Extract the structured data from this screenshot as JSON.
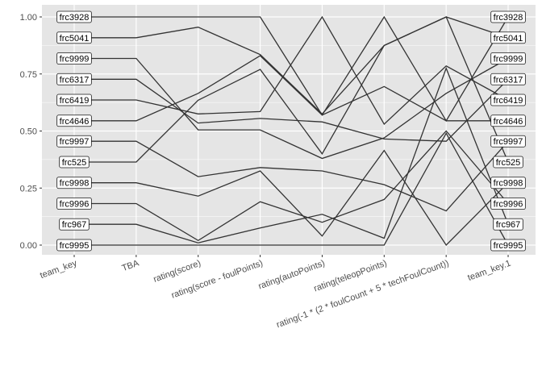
{
  "chart_data": {
    "type": "line",
    "subtype": "parallel-coordinates",
    "title": "",
    "xlabel": "",
    "ylabel": "",
    "ylim": [
      -0.05,
      1.05
    ],
    "y_ticks": [
      "0.00",
      "0.25",
      "0.50",
      "0.75",
      "1.00"
    ],
    "y_tick_values": [
      0,
      0.25,
      0.5,
      0.75,
      1.0
    ],
    "grid": true,
    "legend": "none",
    "colors": {
      "panel": "#e5e5e5",
      "grid": "#ffffff",
      "line": "#333333"
    },
    "categories": [
      "team_key",
      "TBA",
      "rating(score)",
      "rating(score - foulPoints)",
      "rating(autoPoints)",
      "rating(teleopPoints)",
      "rating(-1 * (2 * foulCount + 5 * techFoulCount))",
      "team_key.1"
    ],
    "series": [
      {
        "name": "frc3928",
        "values": [
          1.0,
          1.0,
          1.0,
          1.0,
          0.57,
          1.0,
          0.545,
          1.0
        ]
      },
      {
        "name": "frc5041",
        "values": [
          0.909,
          0.909,
          0.955,
          0.835,
          0.575,
          0.875,
          1.0,
          0.909
        ]
      },
      {
        "name": "frc9999",
        "values": [
          0.818,
          0.818,
          0.505,
          0.505,
          0.38,
          0.47,
          0.665,
          0.818
        ]
      },
      {
        "name": "frc6317",
        "values": [
          0.727,
          0.727,
          0.535,
          0.555,
          0.54,
          0.465,
          0.455,
          0.727
        ]
      },
      {
        "name": "frc6419",
        "values": [
          0.636,
          0.636,
          0.575,
          0.585,
          1.0,
          0.53,
          0.785,
          0.636
        ]
      },
      {
        "name": "frc4646",
        "values": [
          0.545,
          0.545,
          0.665,
          0.83,
          0.57,
          0.695,
          0.545,
          0.545
        ]
      },
      {
        "name": "frc9997",
        "values": [
          0.455,
          0.455,
          0.3,
          0.34,
          0.325,
          0.265,
          0.15,
          0.455
        ]
      },
      {
        "name": "frc525",
        "values": [
          0.364,
          0.364,
          0.635,
          0.77,
          0.4,
          0.875,
          1.0,
          0.364
        ]
      },
      {
        "name": "frc9998",
        "values": [
          0.273,
          0.273,
          0.215,
          0.325,
          0.04,
          0.415,
          0.0,
          0.273
        ]
      },
      {
        "name": "frc9996",
        "values": [
          0.182,
          0.182,
          0.02,
          0.19,
          0.1,
          0.2,
          0.5,
          0.182
        ]
      },
      {
        "name": "frc967",
        "values": [
          0.091,
          0.091,
          0.01,
          0.075,
          0.135,
          0.03,
          0.775,
          0.091
        ]
      },
      {
        "name": "frc9995",
        "values": [
          0.0,
          0.0,
          0.0,
          0.0,
          0.0,
          0.0,
          0.49,
          0.0
        ]
      }
    ]
  }
}
